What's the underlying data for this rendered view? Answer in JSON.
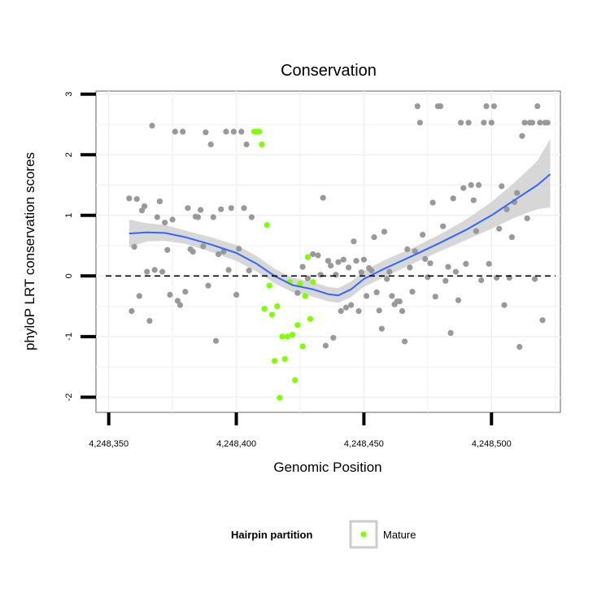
{
  "chart_data": {
    "type": "scatter",
    "title": "Conservation",
    "xlabel": "Genomic Position",
    "ylabel": "phyloP LRT conservation scores",
    "xlim": [
      4248345,
      4248527
    ],
    "ylim": [
      -2.25,
      3.05
    ],
    "x_ticks": [
      4248350,
      4248400,
      4248450,
      4248500
    ],
    "x_tick_labels": [
      "4,248,350",
      "4,248,400",
      "4,248,450",
      "4,248,500"
    ],
    "y_ticks": [
      -2,
      -1,
      0,
      1,
      2,
      3
    ],
    "y_tick_labels": [
      "-2",
      "-1",
      "0",
      "1",
      "2",
      "3"
    ],
    "grid": true,
    "reference_line": {
      "y": 0,
      "style": "dashed"
    },
    "colors": {
      "background_points": "#999999",
      "mature": "#7FFF00",
      "smooth": "#3366FF",
      "ribbon": "#d3d3d3"
    },
    "legend": {
      "title": "Hairpin partition",
      "entries": [
        "Mature"
      ],
      "position": "bottom"
    },
    "series": [
      {
        "name": "Background",
        "color": "#999999",
        "points": [
          [
            4248358,
            1.28
          ],
          [
            4248359,
            -0.58
          ],
          [
            4248360,
            0.48
          ],
          [
            4248361,
            1.27
          ],
          [
            4248362,
            -0.33
          ],
          [
            4248363,
            1.08
          ],
          [
            4248364,
            1.15
          ],
          [
            4248365,
            0.07
          ],
          [
            4248366,
            -0.74
          ],
          [
            4248367,
            2.48
          ],
          [
            4248368,
            0.1
          ],
          [
            4248369,
            0.97
          ],
          [
            4248370,
            1.23
          ],
          [
            4248371,
            0.07
          ],
          [
            4248372,
            0.88
          ],
          [
            4248373,
            0.43
          ],
          [
            4248374,
            -0.31
          ],
          [
            4248375,
            0.93
          ],
          [
            4248376,
            2.38
          ],
          [
            4248377,
            -0.41
          ],
          [
            4248378,
            -0.48
          ],
          [
            4248379,
            2.38
          ],
          [
            4248380,
            -0.26
          ],
          [
            4248381,
            1.12
          ],
          [
            4248382,
            0.44
          ],
          [
            4248383,
            0.4
          ],
          [
            4248384,
            0.98
          ],
          [
            4248385,
            0.97
          ],
          [
            4248386,
            1.09
          ],
          [
            4248387,
            0.49
          ],
          [
            4248388,
            2.37
          ],
          [
            4248389,
            -0.16
          ],
          [
            4248390,
            2.17
          ],
          [
            4248391,
            0.97
          ],
          [
            4248392,
            -1.07
          ],
          [
            4248393,
            0.36
          ],
          [
            4248394,
            1.1
          ],
          [
            4248395,
            0.4
          ],
          [
            4248396,
            2.38
          ],
          [
            4248397,
            0.1
          ],
          [
            4248398,
            1.12
          ],
          [
            4248399,
            2.38
          ],
          [
            4248400,
            -0.31
          ],
          [
            4248401,
            0.45
          ],
          [
            4248402,
            2.38
          ],
          [
            4248403,
            1.12
          ],
          [
            4248404,
            2.17
          ],
          [
            4248405,
            0.09
          ],
          [
            4248406,
            0.97
          ],
          [
            4248424,
            -0.28
          ],
          [
            4248426,
            0.15
          ],
          [
            4248428,
            -0.04
          ],
          [
            4248430,
            0.36
          ],
          [
            4248432,
            0.34
          ],
          [
            4248433,
            0.02
          ],
          [
            4248434,
            1.29
          ],
          [
            4248435,
            -1.15
          ],
          [
            4248436,
            0.25
          ],
          [
            4248437,
            0.17
          ],
          [
            4248438,
            -1.02
          ],
          [
            4248439,
            0.02
          ],
          [
            4248440,
            0.23
          ],
          [
            4248441,
            -0.58
          ],
          [
            4248442,
            0.27
          ],
          [
            4248443,
            -0.52
          ],
          [
            4248444,
            0.14
          ],
          [
            4248445,
            -0.48
          ],
          [
            4248446,
            0.57
          ],
          [
            4248447,
            0.25
          ],
          [
            4248448,
            -0.58
          ],
          [
            4248449,
            0.06
          ],
          [
            4248450,
            0.27
          ],
          [
            4248451,
            -0.33
          ],
          [
            4248452,
            0.13
          ],
          [
            4248453,
            0.09
          ],
          [
            4248454,
            0.64
          ],
          [
            4248455,
            -0.27
          ],
          [
            4248456,
            -0.57
          ],
          [
            4248457,
            -0.87
          ],
          [
            4248458,
            0.73
          ],
          [
            4248459,
            -0.05
          ],
          [
            4248460,
            0.07
          ],
          [
            4248461,
            -0.33
          ],
          [
            4248462,
            -0.47
          ],
          [
            4248463,
            -0.42
          ],
          [
            4248464,
            -0.42
          ],
          [
            4248465,
            -0.58
          ],
          [
            4248466,
            -1.08
          ],
          [
            4248467,
            0.44
          ],
          [
            4248468,
            0.14
          ],
          [
            4248469,
            -0.26
          ],
          [
            4248470,
            0.41
          ],
          [
            4248471,
            2.8
          ],
          [
            4248472,
            2.53
          ],
          [
            4248473,
            0.68
          ],
          [
            4248474,
            0.28
          ],
          [
            4248475,
            -0.02
          ],
          [
            4248476,
            0.21
          ],
          [
            4248477,
            1.21
          ],
          [
            4248478,
            -0.34
          ],
          [
            4248479,
            2.8
          ],
          [
            4248480,
            2.8
          ],
          [
            4248481,
            0.82
          ],
          [
            4248482,
            -0.08
          ],
          [
            4248483,
            0.15
          ],
          [
            4248484,
            -0.94
          ],
          [
            4248485,
            1.28
          ],
          [
            4248486,
            0.07
          ],
          [
            4248487,
            -0.4
          ],
          [
            4248488,
            2.53
          ],
          [
            4248489,
            1.45
          ],
          [
            4248490,
            0.2
          ],
          [
            4248491,
            2.53
          ],
          [
            4248492,
            1.5
          ],
          [
            4248493,
            1.25
          ],
          [
            4248494,
            0.74
          ],
          [
            4248495,
            1.5
          ],
          [
            4248496,
            -0.07
          ],
          [
            4248497,
            2.53
          ],
          [
            4248498,
            2.8
          ],
          [
            4248499,
            0.2
          ],
          [
            4248500,
            2.53
          ],
          [
            4248501,
            2.8
          ],
          [
            4248502,
            -0.03
          ],
          [
            4248503,
            0.78
          ],
          [
            4248504,
            1.48
          ],
          [
            4248505,
            -0.48
          ],
          [
            4248506,
            1.1
          ],
          [
            4248507,
            -0.03
          ],
          [
            4248508,
            0.64
          ],
          [
            4248509,
            1.22
          ],
          [
            4248510,
            1.37
          ],
          [
            4248511,
            -1.17
          ],
          [
            4248512,
            2.31
          ],
          [
            4248513,
            2.53
          ],
          [
            4248514,
            0.95
          ],
          [
            4248515,
            2.53
          ],
          [
            4248516,
            2.53
          ],
          [
            4248517,
            -0.05
          ],
          [
            4248518,
            2.8
          ],
          [
            4248519,
            2.53
          ],
          [
            4248520,
            -0.73
          ],
          [
            4248521,
            2.53
          ],
          [
            4248522,
            2.53
          ]
        ]
      },
      {
        "name": "Mature",
        "color": "#7FFF00",
        "points": [
          [
            4248407,
            2.38
          ],
          [
            4248408,
            2.38
          ],
          [
            4248409,
            2.38
          ],
          [
            4248410,
            2.17
          ],
          [
            4248411,
            -0.54
          ],
          [
            4248412,
            0.84
          ],
          [
            4248413,
            -0.16
          ],
          [
            4248414,
            -0.64
          ],
          [
            4248415,
            -1.4
          ],
          [
            4248416,
            -0.5
          ],
          [
            4248417,
            -2.01
          ],
          [
            4248418,
            -1.0
          ],
          [
            4248419,
            -1.37
          ],
          [
            4248420,
            -1.0
          ],
          [
            4248421,
            -0.1
          ],
          [
            4248422,
            -0.97
          ],
          [
            4248423,
            -1.72
          ],
          [
            4248424,
            -0.81
          ],
          [
            4248425,
            -0.13
          ],
          [
            4248426,
            -1.16
          ],
          [
            4248427,
            -0.33
          ],
          [
            4248428,
            0.31
          ],
          [
            4248429,
            -0.71
          ],
          [
            4248430,
            -0.1
          ]
        ]
      }
    ],
    "smooth": {
      "method": "loess",
      "color": "#3366FF",
      "x": [
        4248358,
        4248365,
        4248372,
        4248380,
        4248390,
        4248400,
        4248408,
        4248415,
        4248422,
        4248430,
        4248436,
        4248440,
        4248445,
        4248450,
        4248458,
        4248470,
        4248480,
        4248490,
        4248500,
        4248510,
        4248518,
        4248523
      ],
      "y": [
        0.7,
        0.72,
        0.71,
        0.64,
        0.52,
        0.38,
        0.2,
        0.0,
        -0.15,
        -0.22,
        -0.3,
        -0.32,
        -0.22,
        -0.05,
        0.12,
        0.35,
        0.55,
        0.76,
        1.0,
        1.28,
        1.5,
        1.68
      ],
      "lower": [
        0.47,
        0.57,
        0.58,
        0.53,
        0.4,
        0.25,
        0.07,
        -0.12,
        -0.27,
        -0.34,
        -0.42,
        -0.44,
        -0.35,
        -0.18,
        -0.02,
        0.22,
        0.41,
        0.59,
        0.78,
        0.98,
        1.1,
        1.13
      ],
      "upper": [
        0.93,
        0.87,
        0.84,
        0.75,
        0.64,
        0.51,
        0.33,
        0.12,
        -0.03,
        -0.1,
        -0.18,
        -0.2,
        -0.09,
        0.08,
        0.26,
        0.48,
        0.69,
        0.93,
        1.22,
        1.58,
        1.9,
        2.26
      ]
    }
  }
}
